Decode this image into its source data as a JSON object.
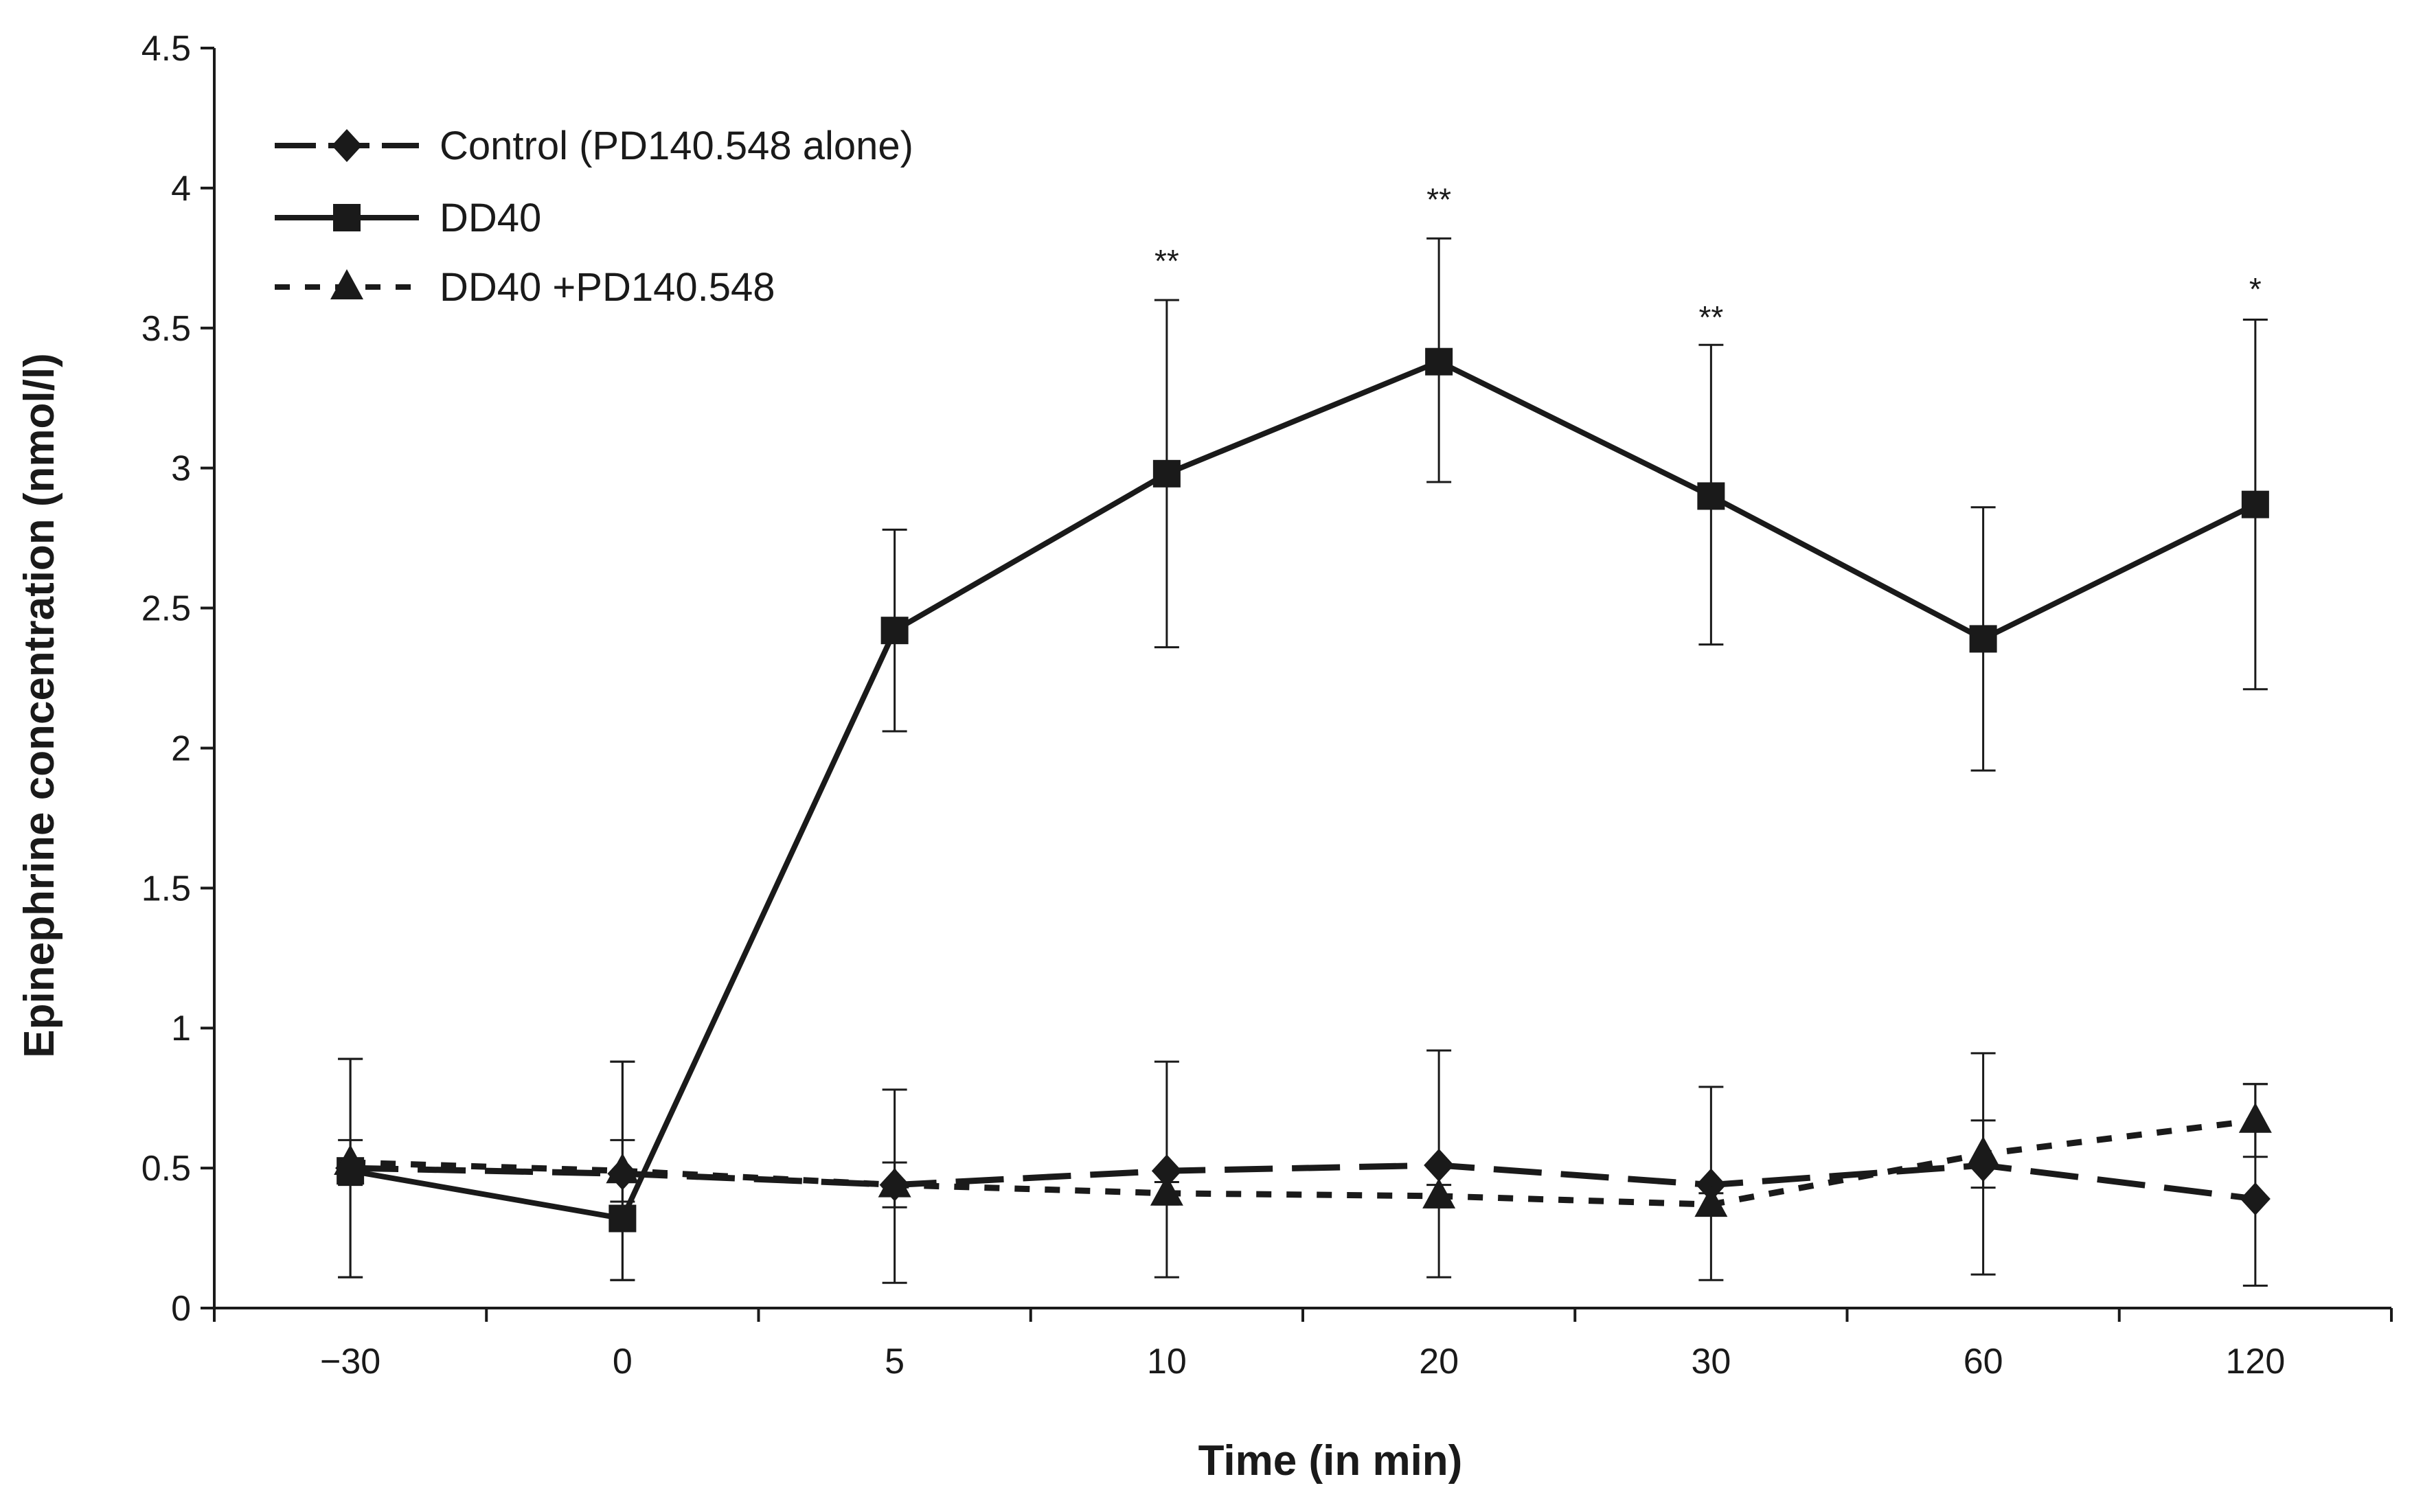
{
  "chart_data": {
    "type": "line",
    "title": "",
    "xlabel": "Time (in min)",
    "ylabel": "Epinephrine concentration (nmol/l)",
    "ylim": [
      0,
      4.5
    ],
    "yticks": [
      "0",
      "0.5",
      "1",
      "1.5",
      "2",
      "2.5",
      "3",
      "3.5",
      "4",
      "4.5"
    ],
    "categories": [
      "−30",
      "0",
      "5",
      "10",
      "20",
      "30",
      "60",
      "120"
    ],
    "grid": false,
    "legend_position": "top-left",
    "series": [
      {
        "name": "Control (PD140.548 alone)",
        "marker": "diamond",
        "line_style": "long-dash",
        "values": [
          0.5,
          0.48,
          0.44,
          0.49,
          0.51,
          0.44,
          0.51,
          0.39
        ],
        "err_low": [
          0.39,
          0.38,
          0.35,
          0.38,
          0.4,
          0.34,
          0.39,
          0.31
        ],
        "err_high": [
          0.39,
          0.4,
          0.34,
          0.39,
          0.41,
          0.35,
          0.4,
          0.41
        ]
      },
      {
        "name": "DD40",
        "marker": "square",
        "line_style": "solid",
        "values": [
          0.49,
          0.32,
          2.42,
          2.98,
          3.38,
          2.9,
          2.39,
          2.87
        ],
        "err_low": [
          0.38,
          0.22,
          0.36,
          0.62,
          0.43,
          0.53,
          0.47,
          0.66
        ],
        "err_high": [
          0.4,
          0.56,
          0.36,
          0.62,
          0.44,
          0.54,
          0.47,
          0.66
        ]
      },
      {
        "name": "DD40 +PD140.548",
        "marker": "triangle",
        "line_style": "dotted",
        "values": [
          0.52,
          0.49,
          0.44,
          0.41,
          0.4,
          0.37,
          0.55,
          0.67
        ],
        "err_low": [
          0.08,
          0.11,
          0.08,
          0.04,
          0.04,
          0.04,
          0.12,
          0.13
        ],
        "err_high": [
          0.08,
          0.11,
          0.08,
          0.04,
          0.04,
          0.04,
          0.12,
          0.13
        ]
      }
    ],
    "annotations": [
      {
        "category_index": 3,
        "text": "**",
        "at_value": 3.7
      },
      {
        "category_index": 4,
        "text": "**",
        "at_value": 3.92
      },
      {
        "category_index": 5,
        "text": "**",
        "at_value": 3.5
      },
      {
        "category_index": 7,
        "text": "*",
        "at_value": 3.6
      }
    ]
  }
}
